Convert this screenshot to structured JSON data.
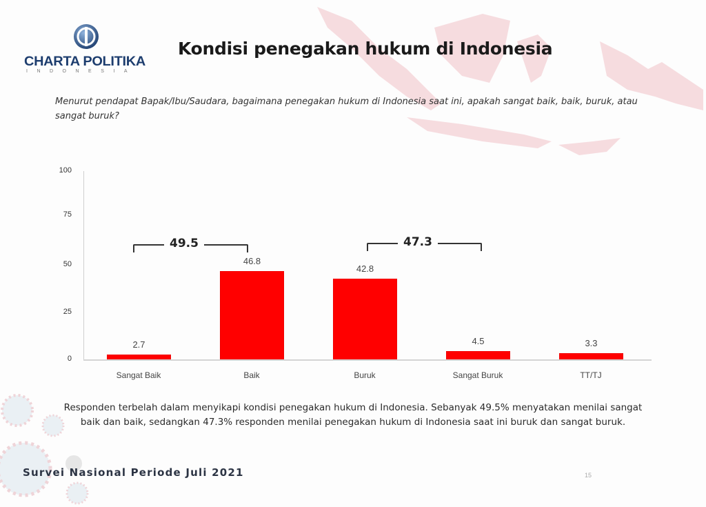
{
  "brand": {
    "logo_name": "CHARTA POLITIKA",
    "logo_sub": "INDONESIA",
    "accent_color": "#1d3d6e",
    "bar_color": "#ff0000"
  },
  "slide": {
    "title": "Kondisi penegakan hukum di Indonesia",
    "question": "Menurut pendapat Bapak/Ibu/Saudara, bagaimana penegakan hukum di Indonesia saat ini,  apakah sangat baik, baik, buruk, atau sangat buruk?",
    "summary": "Responden terbelah dalam menyikapi kondisi penegakan hukum di Indonesia. Sebanyak 49.5% menyatakan menilai sangat baik dan baik, sedangkan 47.3% responden menilai penegakan hukum di Indonesia saat ini buruk dan sangat buruk.",
    "footer": "Survei Nasional Periode Juli 2021",
    "page_number": "15"
  },
  "chart_data": {
    "type": "bar",
    "title": "Kondisi penegakan hukum di Indonesia",
    "xlabel": "",
    "ylabel": "",
    "categories": [
      "Sangat Baik",
      "Baik",
      "Buruk",
      "Sangat Buruk",
      "TT/TJ"
    ],
    "values": [
      2.7,
      46.8,
      42.8,
      4.5,
      3.3
    ],
    "value_labels": [
      "2.7",
      "46.8",
      "42.8",
      "4.5",
      "3.3"
    ],
    "ylim": [
      0,
      100
    ],
    "yticks": [
      "0",
      "25",
      "50",
      "75",
      "100"
    ],
    "grid": false,
    "legend": null,
    "annotations": [
      {
        "label": "49.5",
        "spans": [
          "Sangat Baik",
          "Baik"
        ]
      },
      {
        "label": "47.3",
        "spans": [
          "Buruk",
          "Sangat Buruk"
        ]
      }
    ]
  }
}
